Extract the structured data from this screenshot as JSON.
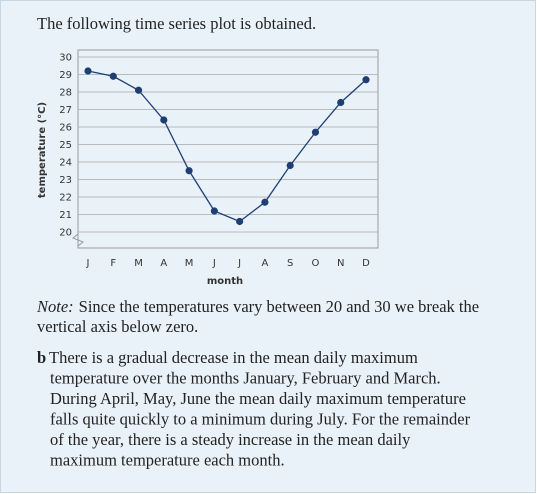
{
  "intro": "The following time series plot is obtained.",
  "chart_data": {
    "type": "line",
    "xlabel": "month",
    "ylabel": "temperature (°C)",
    "categories": [
      "J",
      "F",
      "M",
      "A",
      "M",
      "J",
      "J",
      "A",
      "S",
      "O",
      "N",
      "D"
    ],
    "series": [
      {
        "color": "#1f3f73",
        "values": [
          29.2,
          28.9,
          28.1,
          26.4,
          23.5,
          21.2,
          20.6,
          21.7,
          23.8,
          25.7,
          27.4,
          28.7
        ]
      }
    ],
    "ylim": [
      20,
      30
    ],
    "yticks": [
      20,
      21,
      22,
      23,
      24,
      25,
      26,
      27,
      28,
      29,
      30
    ],
    "grid": true
  },
  "note": {
    "label": "Note:",
    "lines": [
      "Since the temperatures vary between 20 and 30 we break the",
      "vertical axis below zero."
    ]
  },
  "answer": {
    "label": "b",
    "lines": [
      "There is a gradual decrease in the mean daily maximum",
      "temperature over the months January, February and March.",
      "During April, May, June the mean daily maximum temperature",
      "falls quite quickly to a minimum during July. For the remainder",
      "of the year, there is a steady increase in the mean daily",
      "maximum temperature each month."
    ]
  }
}
